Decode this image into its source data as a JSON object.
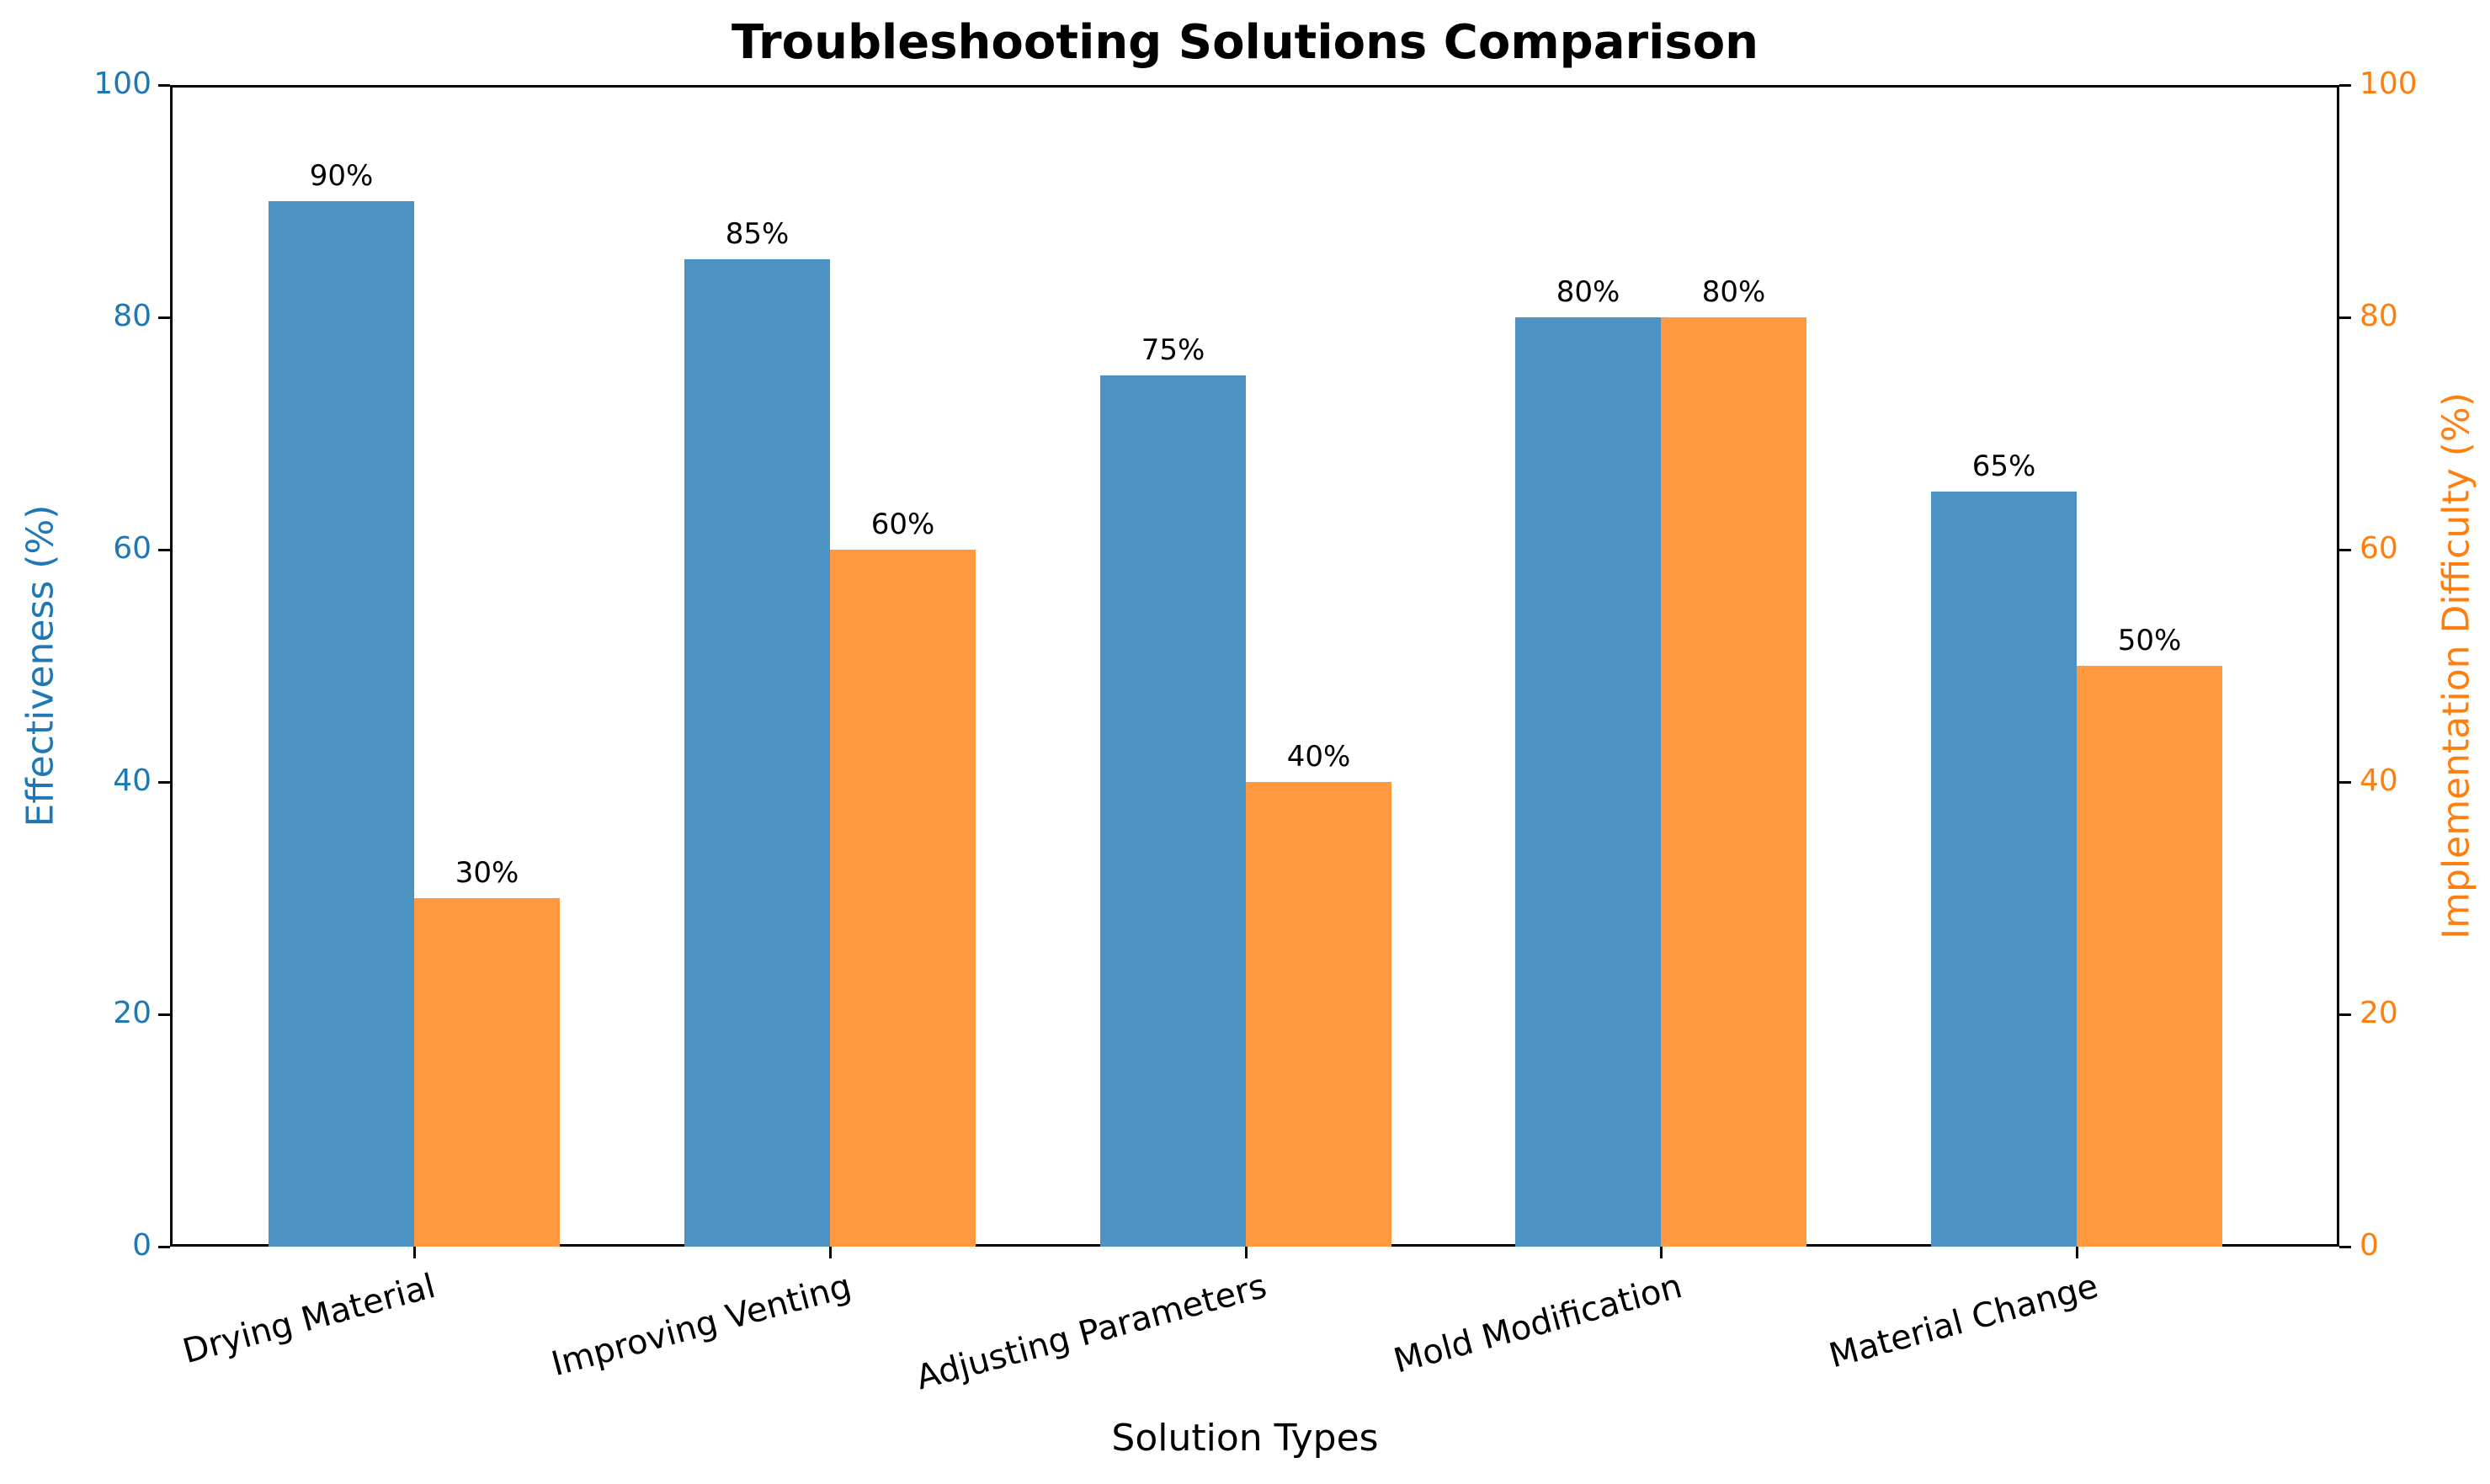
{
  "chart_data": {
    "type": "bar",
    "title": "Troubleshooting Solutions Comparison",
    "xlabel": "Solution Types",
    "ylabel": "Effectiveness (%)",
    "ylabel_right": "Implementation Difficulty (%)",
    "categories": [
      "Drying Material",
      "Improving Venting",
      "Adjusting Parameters",
      "Mold Modification",
      "Material Change"
    ],
    "series": [
      {
        "name": "Effectiveness (%)",
        "axis": "left",
        "color": "#4c92c3",
        "values": [
          90,
          85,
          75,
          80,
          65
        ],
        "labels": [
          "90%",
          "85%",
          "75%",
          "80%",
          "65%"
        ]
      },
      {
        "name": "Implementation Difficulty (%)",
        "axis": "right",
        "color": "#ff983e",
        "values": [
          30,
          60,
          40,
          80,
          50
        ],
        "labels": [
          "30%",
          "60%",
          "40%",
          "80%",
          "50%"
        ]
      }
    ],
    "ylim": [
      0,
      100
    ],
    "ylim_right": [
      0,
      100
    ],
    "yticks": [
      "0",
      "20",
      "40",
      "60",
      "80",
      "100"
    ],
    "yticks_right": [
      "0",
      "20",
      "40",
      "60",
      "80",
      "100"
    ],
    "left_axis_color": "#1f77b4",
    "right_axis_color": "#ff7f0e",
    "grid": false,
    "legend": null
  }
}
